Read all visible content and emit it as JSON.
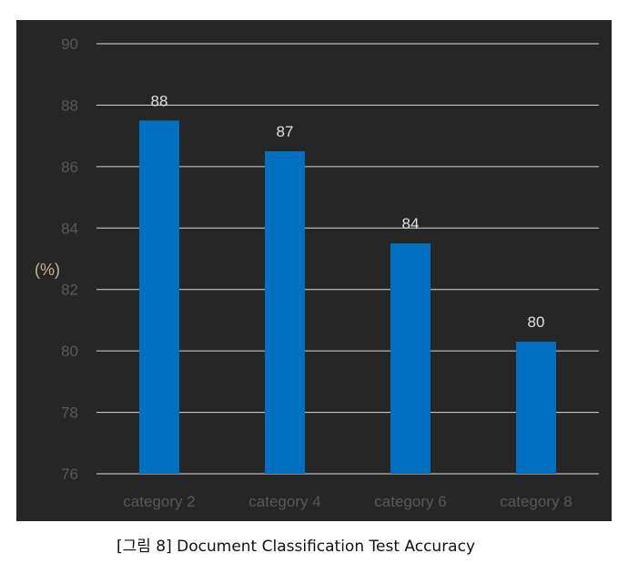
{
  "chart_data": {
    "type": "bar",
    "categories": [
      "category 2",
      "category 4",
      "category 6",
      "category 8"
    ],
    "values": [
      87.5,
      86.5,
      83.5,
      80.3
    ],
    "data_labels": [
      "88",
      "87",
      "84",
      "80"
    ],
    "title": "",
    "xlabel": "",
    "ylabel": "(%)",
    "ylim": [
      76,
      90
    ],
    "yticks": [
      76,
      78,
      80,
      82,
      84,
      86,
      88,
      90
    ],
    "grid": true,
    "legend": "none",
    "colors": {
      "background": "#262626",
      "bar": "#0070c0",
      "grid": "#d9d9d9",
      "tick_label": "#595959",
      "ylabel": "#c9b48a",
      "data_label": "#e0e0e0"
    }
  },
  "caption": "[그림 8] Document Classification Test Accuracy"
}
